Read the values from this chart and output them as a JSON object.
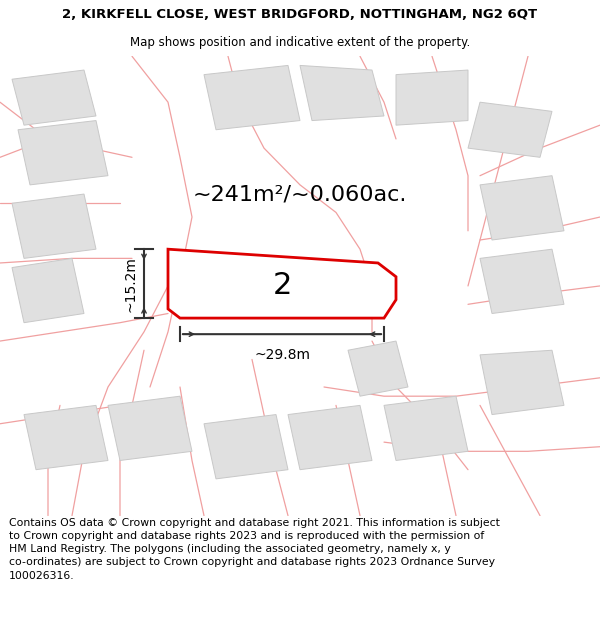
{
  "title_line1": "2, KIRKFELL CLOSE, WEST BRIDGFORD, NOTTINGHAM, NG2 6QT",
  "title_line2": "Map shows position and indicative extent of the property.",
  "footer_text": "Contains OS data © Crown copyright and database right 2021. This information is subject\nto Crown copyright and database rights 2023 and is reproduced with the permission of\nHM Land Registry. The polygons (including the associated geometry, namely x, y\nco-ordinates) are subject to Crown copyright and database rights 2023 Ordnance Survey\n100026316.",
  "area_text": "~241m²/~0.060ac.",
  "plot_number": "2",
  "dim_width": "~29.8m",
  "dim_height": "~15.2m",
  "bg_color": "#ffffff",
  "map_bg": "#ffffff",
  "highlight_color": "#dd0000",
  "neighbor_fill": "#e0e0e0",
  "neighbor_edge": "#c8c8c8",
  "road_color": "#f0a0a0",
  "title_fontsize": 9.5,
  "subtitle_fontsize": 8.5,
  "footer_fontsize": 7.8,
  "area_fontsize": 16,
  "dim_fontsize": 10,
  "plot_label_fontsize": 22
}
